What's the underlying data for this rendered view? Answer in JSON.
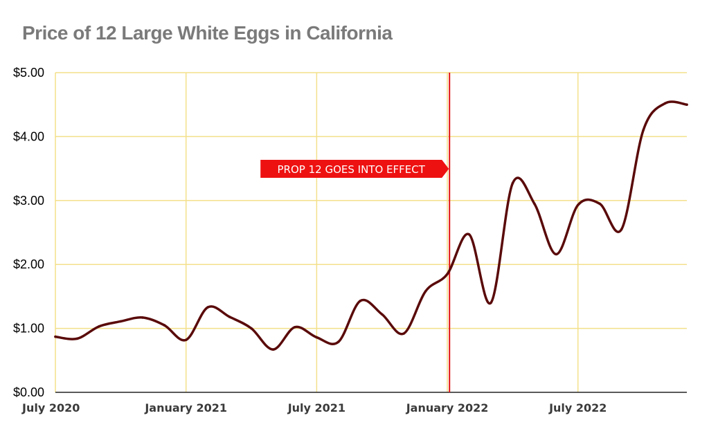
{
  "chart_data": {
    "type": "line",
    "title": "Price of 12 Large White Eggs in California",
    "xlabel": "",
    "ylabel": "",
    "ylim": [
      0,
      5
    ],
    "grid": true,
    "y_ticks": [
      {
        "value": 0,
        "label": "$0.00"
      },
      {
        "value": 1,
        "label": "$1.00"
      },
      {
        "value": 2,
        "label": "$2.00"
      },
      {
        "value": 3,
        "label": "$3.00"
      },
      {
        "value": 4,
        "label": "$4.00"
      },
      {
        "value": 5,
        "label": "$5.00"
      }
    ],
    "x_ticks": [
      {
        "value": 0,
        "label": "July 2020"
      },
      {
        "value": 6,
        "label": "January 2021"
      },
      {
        "value": 12,
        "label": "July 2021"
      },
      {
        "value": 18,
        "label": "January 2022"
      },
      {
        "value": 24,
        "label": "July 2022"
      }
    ],
    "x_range": [
      0,
      29
    ],
    "series": [
      {
        "name": "",
        "color": "#5a0a0a",
        "x": [
          0,
          1,
          2,
          3,
          4,
          5,
          6,
          7,
          8,
          9,
          10,
          11,
          12,
          13,
          14,
          15,
          16,
          17,
          18,
          19,
          20,
          21,
          22,
          23,
          24,
          25,
          26,
          27,
          28,
          29
        ],
        "y": [
          0.87,
          0.84,
          1.03,
          1.11,
          1.17,
          1.05,
          0.82,
          1.33,
          1.18,
          1.0,
          0.67,
          1.02,
          0.86,
          0.79,
          1.43,
          1.22,
          0.92,
          1.58,
          1.85,
          2.47,
          1.4,
          3.27,
          2.95,
          2.16,
          2.93,
          2.95,
          2.55,
          4.1,
          4.52,
          4.5
        ]
      }
    ],
    "annotations": [
      {
        "x": 18.1,
        "label": "PROP 12 GOES INTO EFFECT",
        "line_color": "#e01010",
        "box_color": "#ee1111"
      }
    ]
  }
}
